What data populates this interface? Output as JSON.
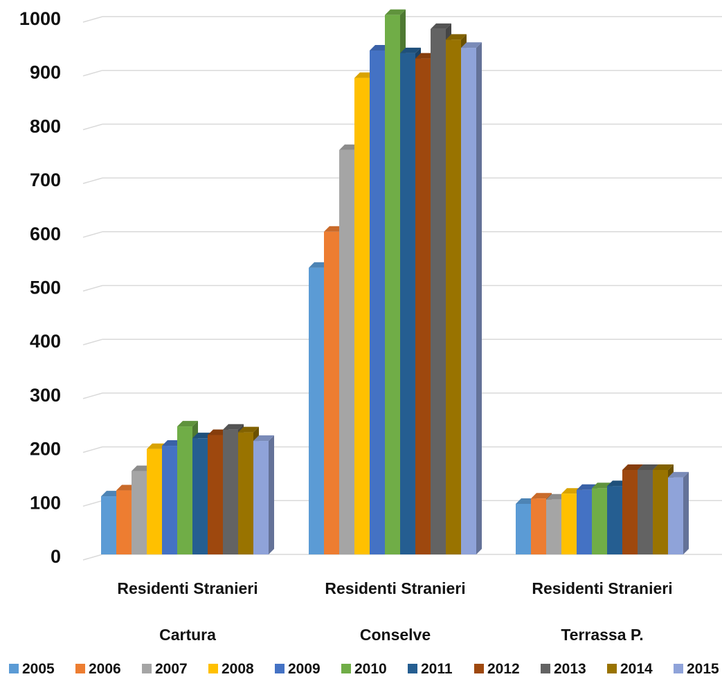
{
  "chart_data": {
    "type": "bar",
    "subtype": "3d-clustered-column",
    "categories": [
      [
        "Residenti Stranieri",
        "Cartura"
      ],
      [
        "Residenti Stranieri",
        "Conselve"
      ],
      [
        "Residenti Stranieri",
        "Terrassa P."
      ]
    ],
    "ylim": [
      0,
      1000
    ],
    "yticks": [
      0,
      100,
      200,
      300,
      400,
      500,
      600,
      700,
      800,
      900,
      1000
    ],
    "grid": true,
    "legend_position": "bottom",
    "series": [
      {
        "name": "2005",
        "color": "#5B9BD5",
        "values": [
          108,
          533,
          94
        ]
      },
      {
        "name": "2006",
        "color": "#ED7D31",
        "values": [
          119,
          600,
          104
        ]
      },
      {
        "name": "2007",
        "color": "#A5A5A5",
        "values": [
          155,
          752,
          102
        ]
      },
      {
        "name": "2008",
        "color": "#FFC000",
        "values": [
          196,
          886,
          113
        ]
      },
      {
        "name": "2009",
        "color": "#4472C4",
        "values": [
          202,
          937,
          120
        ]
      },
      {
        "name": "2010",
        "color": "#70AD47",
        "values": [
          238,
          1003,
          123
        ]
      },
      {
        "name": "2011",
        "color": "#255E91",
        "values": [
          216,
          932,
          127
        ]
      },
      {
        "name": "2012",
        "color": "#9E480E",
        "values": [
          222,
          922,
          157
        ]
      },
      {
        "name": "2013",
        "color": "#636363",
        "values": [
          232,
          977,
          157
        ]
      },
      {
        "name": "2014",
        "color": "#997300",
        "values": [
          227,
          957,
          157
        ]
      },
      {
        "name": "2015",
        "color": "#8FA3D9",
        "values": [
          211,
          942,
          143
        ]
      }
    ]
  }
}
